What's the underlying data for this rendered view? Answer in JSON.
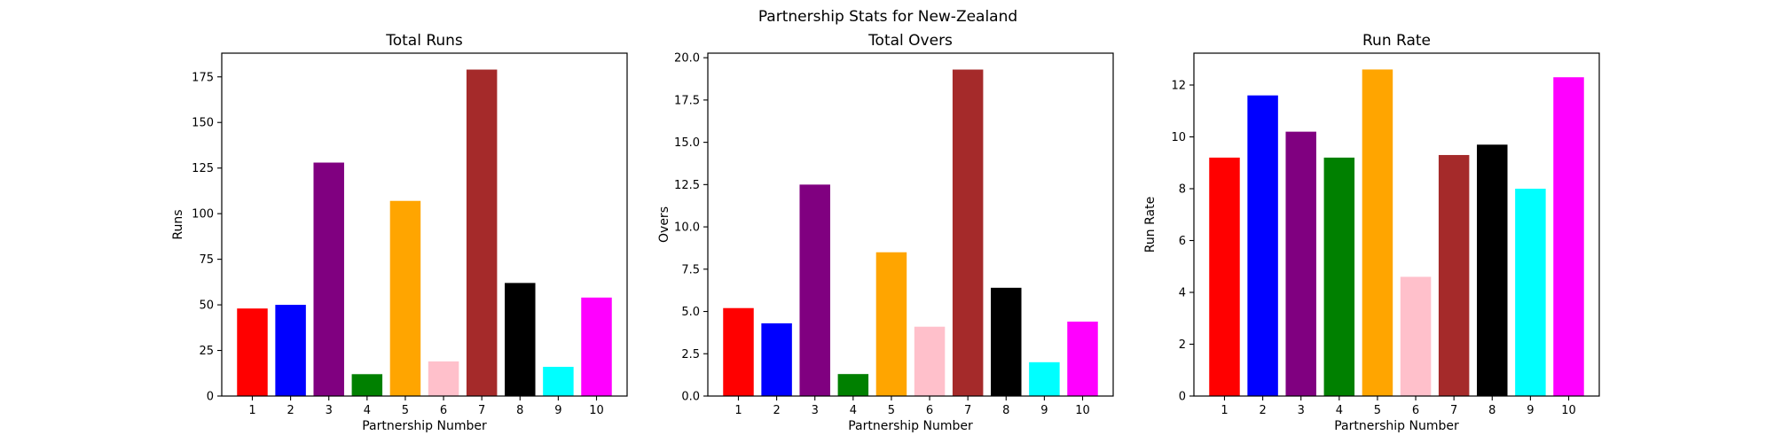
{
  "figure": {
    "title": "Partnership Stats for New-Zealand"
  },
  "chart_data": [
    {
      "type": "bar",
      "title": "Total Runs",
      "xlabel": "Partnership Number",
      "ylabel": "Runs",
      "categories": [
        "1",
        "2",
        "3",
        "4",
        "5",
        "6",
        "7",
        "8",
        "9",
        "10"
      ],
      "values": [
        48,
        50,
        128,
        12,
        107,
        19,
        179,
        62,
        16,
        54
      ],
      "colors": [
        "#ff0000",
        "#0000ff",
        "#800080",
        "#008000",
        "#ffa500",
        "#ffc0cb",
        "#a52a2a",
        "#000000",
        "#00ffff",
        "#ff00ff"
      ],
      "ylim": [
        0,
        188
      ],
      "yticks": [
        0,
        25,
        50,
        75,
        100,
        125,
        150,
        175
      ],
      "ytick_labels": [
        "0",
        "25",
        "50",
        "75",
        "100",
        "125",
        "150",
        "175"
      ],
      "grid": false
    },
    {
      "type": "bar",
      "title": "Total Overs",
      "xlabel": "Partnership Number",
      "ylabel": "Overs",
      "categories": [
        "1",
        "2",
        "3",
        "4",
        "5",
        "6",
        "7",
        "8",
        "9",
        "10"
      ],
      "values": [
        5.2,
        4.3,
        12.5,
        1.3,
        8.5,
        4.1,
        19.3,
        6.4,
        2.0,
        4.4
      ],
      "colors": [
        "#ff0000",
        "#0000ff",
        "#800080",
        "#008000",
        "#ffa500",
        "#ffc0cb",
        "#a52a2a",
        "#000000",
        "#00ffff",
        "#ff00ff"
      ],
      "ylim": [
        0,
        20.27
      ],
      "yticks": [
        0,
        2.5,
        5,
        7.5,
        10,
        12.5,
        15,
        17.5,
        20
      ],
      "ytick_labels": [
        "0.0",
        "2.5",
        "5.0",
        "7.5",
        "10.0",
        "12.5",
        "15.0",
        "17.5",
        "20.0"
      ],
      "grid": false
    },
    {
      "type": "bar",
      "title": "Run Rate",
      "xlabel": "Partnership Number",
      "ylabel": "Run Rate",
      "categories": [
        "1",
        "2",
        "3",
        "4",
        "5",
        "6",
        "7",
        "8",
        "9",
        "10"
      ],
      "values": [
        9.2,
        11.6,
        10.2,
        9.2,
        12.6,
        4.6,
        9.3,
        9.7,
        8.0,
        12.3
      ],
      "colors": [
        "#ff0000",
        "#0000ff",
        "#800080",
        "#008000",
        "#ffa500",
        "#ffc0cb",
        "#a52a2a",
        "#000000",
        "#00ffff",
        "#ff00ff"
      ],
      "ylim": [
        0,
        13.23
      ],
      "yticks": [
        0,
        2,
        4,
        6,
        8,
        10,
        12
      ],
      "ytick_labels": [
        "0",
        "2",
        "4",
        "6",
        "8",
        "10",
        "12"
      ],
      "grid": false
    }
  ]
}
